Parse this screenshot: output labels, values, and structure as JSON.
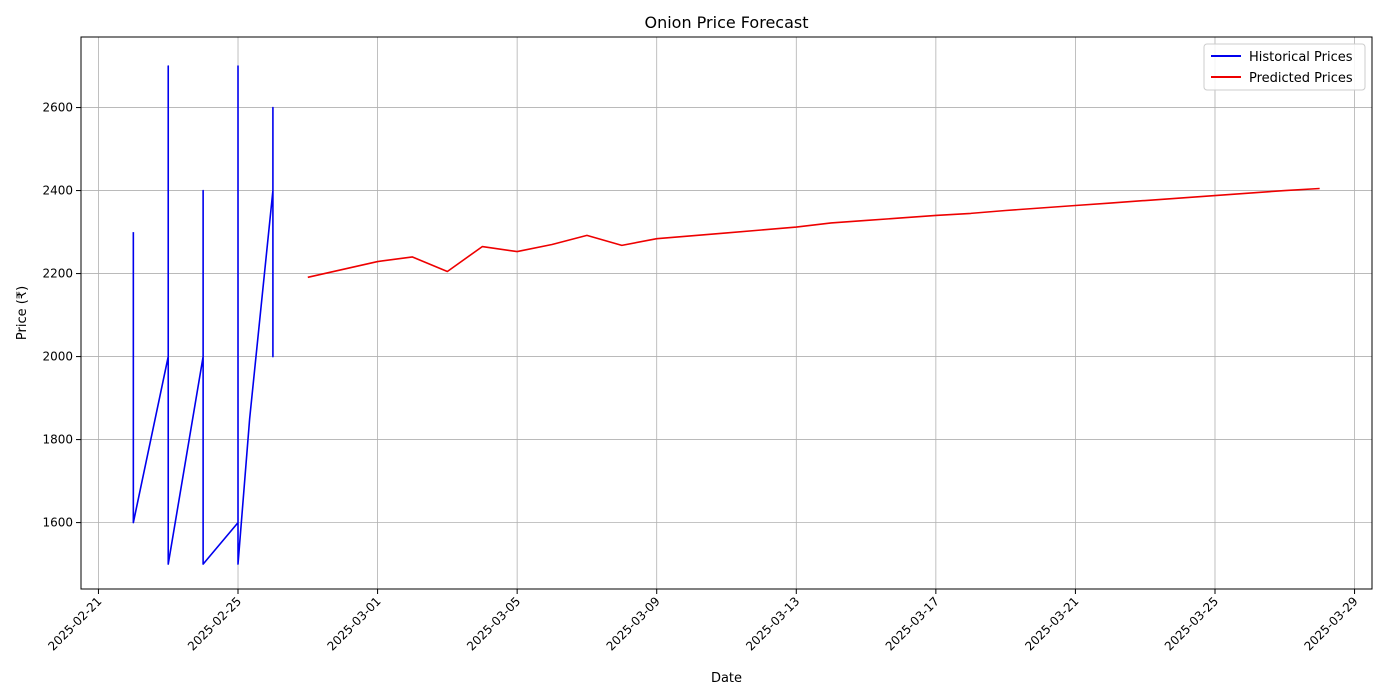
{
  "chart_data": {
    "type": "line",
    "title": "Onion Price Forecast",
    "xlabel": "Date",
    "ylabel": "Price (₹)",
    "x_axis": "date",
    "xlim": [
      "2025-02-20T12:00",
      "2025-03-29T12:00"
    ],
    "ylim": [
      1440,
      2770
    ],
    "x_ticks": [
      "2025-02-21",
      "2025-02-25",
      "2025-03-01",
      "2025-03-05",
      "2025-03-09",
      "2025-03-13",
      "2025-03-17",
      "2025-03-21",
      "2025-03-25",
      "2025-03-29"
    ],
    "y_ticks": [
      1600,
      1800,
      2000,
      2200,
      2400,
      2600
    ],
    "grid": true,
    "legend_position": "top-right",
    "series": [
      {
        "name": "Historical Prices",
        "color": "#0000ee",
        "points": [
          [
            "2025-02-22T00:00",
            2300
          ],
          [
            "2025-02-22T00:00",
            1600
          ],
          [
            "2025-02-23T00:00",
            2000
          ],
          [
            "2025-02-23T00:00",
            1900
          ],
          [
            "2025-02-23T00:00",
            2450
          ],
          [
            "2025-02-23T00:00",
            2700
          ],
          [
            "2025-02-23T00:00",
            1500
          ],
          [
            "2025-02-24T00:00",
            2000
          ],
          [
            "2025-02-24T00:00",
            2400
          ],
          [
            "2025-02-24T00:00",
            1500
          ],
          [
            "2025-02-24T00:00",
            1900
          ],
          [
            "2025-02-24T00:00",
            1500
          ],
          [
            "2025-02-25T00:00",
            1600
          ],
          [
            "2025-02-25T00:00",
            2700
          ],
          [
            "2025-02-25T00:00",
            1500
          ],
          [
            "2025-02-25T08:00",
            1850
          ],
          [
            "2025-02-26T00:00",
            2400
          ],
          [
            "2025-02-26T00:00",
            2600
          ],
          [
            "2025-02-26T00:00",
            2000
          ],
          [
            "2025-02-26T00:00",
            2400
          ],
          [
            "2025-02-26T00:00",
            2000
          ]
        ]
      },
      {
        "name": "Predicted Prices",
        "color": "#ee0000",
        "points": [
          [
            "2025-02-27T00:00",
            2191
          ],
          [
            "2025-02-28T00:00",
            2210
          ],
          [
            "2025-03-01T00:00",
            2229
          ],
          [
            "2025-03-02T00:00",
            2240
          ],
          [
            "2025-03-03T00:00",
            2205
          ],
          [
            "2025-03-04T00:00",
            2265
          ],
          [
            "2025-03-05T00:00",
            2253
          ],
          [
            "2025-03-06T00:00",
            2270
          ],
          [
            "2025-03-07T00:00",
            2292
          ],
          [
            "2025-03-08T00:00",
            2268
          ],
          [
            "2025-03-09T00:00",
            2284
          ],
          [
            "2025-03-10T00:00",
            2291
          ],
          [
            "2025-03-11T00:00",
            2298
          ],
          [
            "2025-03-12T00:00",
            2305
          ],
          [
            "2025-03-13T00:00",
            2312
          ],
          [
            "2025-03-14T00:00",
            2322
          ],
          [
            "2025-03-15T00:00",
            2328
          ],
          [
            "2025-03-16T00:00",
            2334
          ],
          [
            "2025-03-17T00:00",
            2340
          ],
          [
            "2025-03-18T00:00",
            2345
          ],
          [
            "2025-03-19T00:00",
            2352
          ],
          [
            "2025-03-20T00:00",
            2358
          ],
          [
            "2025-03-21T00:00",
            2364
          ],
          [
            "2025-03-22T00:00",
            2370
          ],
          [
            "2025-03-23T00:00",
            2376
          ],
          [
            "2025-03-24T00:00",
            2382
          ],
          [
            "2025-03-25T00:00",
            2388
          ],
          [
            "2025-03-26T00:00",
            2394
          ],
          [
            "2025-03-27T00:00",
            2400
          ],
          [
            "2025-03-28T00:00",
            2405
          ]
        ]
      }
    ]
  }
}
